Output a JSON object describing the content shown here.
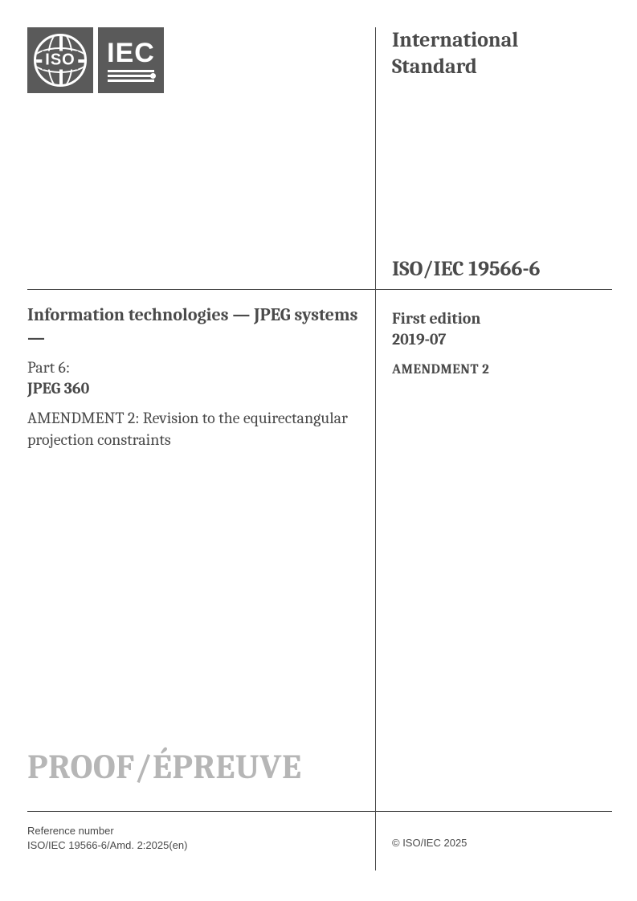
{
  "header": {
    "org_line1": "International",
    "org_line2": "Standard"
  },
  "logos": {
    "iso_label": "ISO",
    "iec_label": "IEC"
  },
  "standard": {
    "number": "ISO/IEC 19566-6",
    "edition": "First edition",
    "edition_date": "2019-07",
    "amendment_label": "AMENDMENT 2"
  },
  "title": {
    "main": "Information technologies — JPEG systems —",
    "part_label": "Part 6:",
    "part_name": "JPEG 360",
    "amendment": "AMENDMENT 2: Revision to the equirectangular projection constraints"
  },
  "watermark": "PROOF/ÉPREUVE",
  "footer": {
    "ref_label": "Reference number",
    "ref_value": "ISO/IEC 19566-6/Amd. 2:2025(en)",
    "copyright": "© ISO/IEC 2025"
  },
  "colors": {
    "text": "#4a4a4a",
    "logo_bg": "#5a5a5a",
    "watermark": "#b6b6b6",
    "bg": "#ffffff",
    "rule": "#4a4a4a"
  }
}
